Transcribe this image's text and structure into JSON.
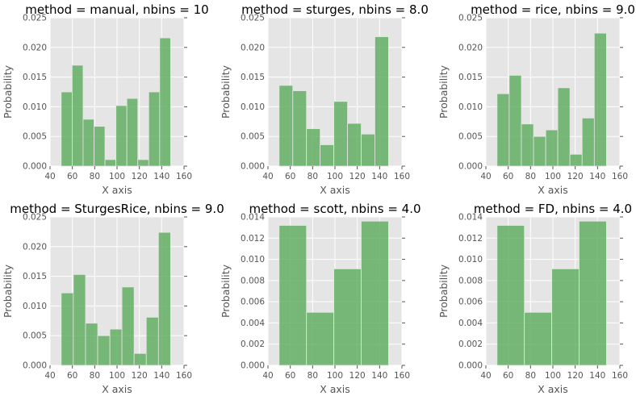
{
  "chart_data": [
    {
      "type": "bar",
      "title": "method = manual, nbins = 10",
      "xlabel": "X axis",
      "ylabel": "Probability",
      "xlim": [
        40,
        160
      ],
      "ylim": [
        0,
        0.025
      ],
      "xticks": [
        40,
        60,
        80,
        100,
        120,
        140,
        160
      ],
      "yticks": [
        0.0,
        0.005,
        0.01,
        0.015,
        0.02,
        0.025
      ],
      "ytick_labels": [
        "0.000",
        "0.005",
        "0.010",
        "0.015",
        "0.020",
        "0.025"
      ],
      "bin_edges": [
        50,
        59.8,
        69.6,
        79.4,
        89.2,
        99,
        108.8,
        118.6,
        128.4,
        138.2,
        148
      ],
      "values": [
        0.0125,
        0.017,
        0.0079,
        0.0067,
        0.0011,
        0.0102,
        0.0114,
        0.0011,
        0.0125,
        0.0216
      ],
      "grid": true,
      "color": "#5aaa5a"
    },
    {
      "type": "bar",
      "title": "method = sturges, nbins = 8.0",
      "xlabel": "X axis",
      "ylabel": "Probability",
      "xlim": [
        40,
        160
      ],
      "ylim": [
        0,
        0.025
      ],
      "xticks": [
        40,
        60,
        80,
        100,
        120,
        140,
        160
      ],
      "yticks": [
        0.0,
        0.005,
        0.01,
        0.015,
        0.02,
        0.025
      ],
      "ytick_labels": [
        "0.000",
        "0.005",
        "0.010",
        "0.015",
        "0.020",
        "0.025"
      ],
      "bin_edges": [
        50,
        62.25,
        74.5,
        86.75,
        99,
        111.25,
        123.5,
        135.75,
        148
      ],
      "values": [
        0.0136,
        0.0127,
        0.0063,
        0.0036,
        0.0109,
        0.0072,
        0.0054,
        0.0218
      ],
      "grid": true,
      "color": "#5aaa5a"
    },
    {
      "type": "bar",
      "title": "method = rice, nbins = 9.0",
      "xlabel": "X axis",
      "ylabel": "Probability",
      "xlim": [
        40,
        160
      ],
      "ylim": [
        0,
        0.025
      ],
      "xticks": [
        40,
        60,
        80,
        100,
        120,
        140,
        160
      ],
      "yticks": [
        0.0,
        0.005,
        0.01,
        0.015,
        0.02,
        0.025
      ],
      "ytick_labels": [
        "0.000",
        "0.005",
        "0.010",
        "0.015",
        "0.020",
        "0.025"
      ],
      "bin_edges": [
        50,
        60.9,
        71.8,
        82.7,
        93.6,
        104.4,
        115.3,
        126.2,
        137.1,
        148
      ],
      "values": [
        0.0122,
        0.0153,
        0.0071,
        0.005,
        0.0061,
        0.0132,
        0.002,
        0.0081,
        0.0224
      ],
      "grid": true,
      "color": "#5aaa5a"
    },
    {
      "type": "bar",
      "title": "method = SturgesRice, nbins = 9.0",
      "xlabel": "X axis",
      "ylabel": "Probability",
      "xlim": [
        40,
        160
      ],
      "ylim": [
        0,
        0.025
      ],
      "xticks": [
        40,
        60,
        80,
        100,
        120,
        140,
        160
      ],
      "yticks": [
        0.0,
        0.005,
        0.01,
        0.015,
        0.02,
        0.025
      ],
      "ytick_labels": [
        "0.000",
        "0.005",
        "0.010",
        "0.015",
        "0.020",
        "0.025"
      ],
      "bin_edges": [
        50,
        60.9,
        71.8,
        82.7,
        93.6,
        104.4,
        115.3,
        126.2,
        137.1,
        148
      ],
      "values": [
        0.0122,
        0.0153,
        0.0071,
        0.005,
        0.0061,
        0.0132,
        0.002,
        0.0081,
        0.0224
      ],
      "grid": true,
      "color": "#5aaa5a"
    },
    {
      "type": "bar",
      "title": "method = scott, nbins = 4.0",
      "xlabel": "X axis",
      "ylabel": "Probability",
      "xlim": [
        40,
        160
      ],
      "ylim": [
        0,
        0.014
      ],
      "xticks": [
        40,
        60,
        80,
        100,
        120,
        140,
        160
      ],
      "yticks": [
        0.0,
        0.002,
        0.004,
        0.006,
        0.008,
        0.01,
        0.012,
        0.014
      ],
      "ytick_labels": [
        "0.000",
        "0.002",
        "0.004",
        "0.006",
        "0.008",
        "0.010",
        "0.012",
        "0.014"
      ],
      "bin_edges": [
        50,
        74.5,
        99,
        123.5,
        148
      ],
      "values": [
        0.0132,
        0.005,
        0.0091,
        0.0136
      ],
      "grid": true,
      "color": "#5aaa5a"
    },
    {
      "type": "bar",
      "title": "method = FD, nbins = 4.0",
      "xlabel": "X axis",
      "ylabel": "Probability",
      "xlim": [
        40,
        160
      ],
      "ylim": [
        0,
        0.014
      ],
      "xticks": [
        40,
        60,
        80,
        100,
        120,
        140,
        160
      ],
      "yticks": [
        0.0,
        0.002,
        0.004,
        0.006,
        0.008,
        0.01,
        0.012,
        0.014
      ],
      "ytick_labels": [
        "0.000",
        "0.002",
        "0.004",
        "0.006",
        "0.008",
        "0.010",
        "0.012",
        "0.014"
      ],
      "bin_edges": [
        50,
        74.5,
        99,
        123.5,
        148
      ],
      "values": [
        0.0132,
        0.005,
        0.0091,
        0.0136
      ],
      "grid": true,
      "color": "#5aaa5a"
    }
  ]
}
